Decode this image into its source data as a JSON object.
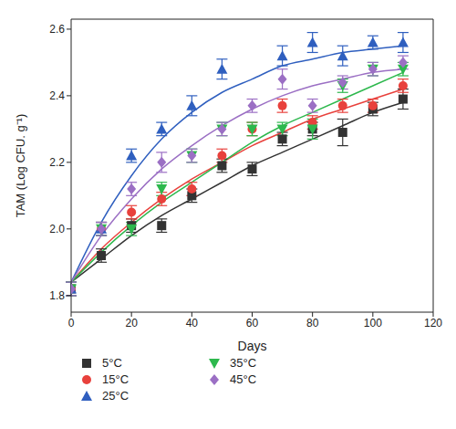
{
  "chart_data": {
    "type": "scatter",
    "xlabel": "Days",
    "ylabel": "TAM (Log CFU. g⁻¹)",
    "legend": "bottom",
    "x": [
      0,
      10,
      20,
      30,
      40,
      50,
      60,
      70,
      80,
      90,
      100,
      110
    ],
    "xlim": [
      0,
      120
    ],
    "xticks": [
      0,
      20,
      40,
      60,
      80,
      100,
      120
    ],
    "ylim": [
      1.75,
      2.63
    ],
    "yticks": [
      1.8,
      {
        "value": 2,
        "label": "2.0"
      },
      2.2,
      2.4,
      2.6
    ],
    "series": [
      {
        "name": "5°C",
        "color": "#333333",
        "marker": "square",
        "values": [
          1.82,
          1.92,
          2.01,
          2.01,
          2.1,
          2.19,
          2.18,
          2.27,
          2.3,
          2.29,
          2.36,
          2.39
        ],
        "errors": [
          0.02,
          0.02,
          0.02,
          0.02,
          0.02,
          0.02,
          0.02,
          0.02,
          0.02,
          0.04,
          0.02,
          0.03
        ],
        "fit": [
          1.84,
          1.91,
          1.98,
          2.04,
          2.09,
          2.14,
          2.19,
          2.23,
          2.27,
          2.31,
          2.35,
          2.38
        ]
      },
      {
        "name": "15°C",
        "color": "#e8413c",
        "marker": "circle",
        "values": [
          1.82,
          2.0,
          2.05,
          2.09,
          2.12,
          2.22,
          2.3,
          2.37,
          2.32,
          2.37,
          2.37,
          2.43
        ],
        "errors": [
          0.02,
          0.02,
          0.02,
          0.02,
          0.02,
          0.02,
          0.02,
          0.02,
          0.02,
          0.02,
          0.02,
          0.02
        ],
        "fit": [
          1.84,
          1.94,
          2.02,
          2.09,
          2.15,
          2.2,
          2.25,
          2.29,
          2.33,
          2.36,
          2.39,
          2.42
        ]
      },
      {
        "name": "25°C",
        "color": "#2f5fbf",
        "marker": "triangle",
        "values": [
          1.82,
          2.0,
          2.22,
          2.3,
          2.37,
          2.48,
          null,
          2.52,
          2.56,
          2.52,
          2.56,
          2.56
        ],
        "errors": [
          0.02,
          0.02,
          0.02,
          0.02,
          0.03,
          0.03,
          null,
          0.03,
          0.03,
          0.03,
          0.02,
          0.03
        ],
        "fit": [
          1.84,
          2.02,
          2.16,
          2.27,
          2.35,
          2.41,
          2.45,
          2.49,
          2.51,
          2.53,
          2.54,
          2.55
        ]
      },
      {
        "name": "35°C",
        "color": "#2db84d",
        "marker": "triangle-down",
        "values": [
          1.82,
          2.0,
          2.0,
          2.12,
          2.22,
          2.3,
          2.3,
          2.3,
          2.3,
          2.43,
          2.48,
          2.48
        ],
        "errors": [
          0.02,
          0.02,
          0.02,
          0.02,
          0.02,
          0.02,
          0.02,
          0.02,
          0.03,
          0.02,
          0.02,
          0.02
        ],
        "fit": [
          1.84,
          1.93,
          2.01,
          2.08,
          2.14,
          2.2,
          2.26,
          2.31,
          2.35,
          2.39,
          2.43,
          2.47
        ]
      },
      {
        "name": "45°C",
        "color": "#9b6fc4",
        "marker": "diamond",
        "values": [
          1.82,
          2.0,
          2.12,
          2.2,
          2.22,
          2.3,
          2.37,
          2.45,
          2.37,
          2.44,
          2.48,
          2.5
        ],
        "errors": [
          0.02,
          0.02,
          0.02,
          0.03,
          0.02,
          0.02,
          0.02,
          0.03,
          0.02,
          0.02,
          0.02,
          0.02
        ],
        "fit": [
          1.84,
          1.98,
          2.09,
          2.18,
          2.25,
          2.31,
          2.36,
          2.4,
          2.43,
          2.45,
          2.47,
          2.48
        ]
      }
    ]
  }
}
